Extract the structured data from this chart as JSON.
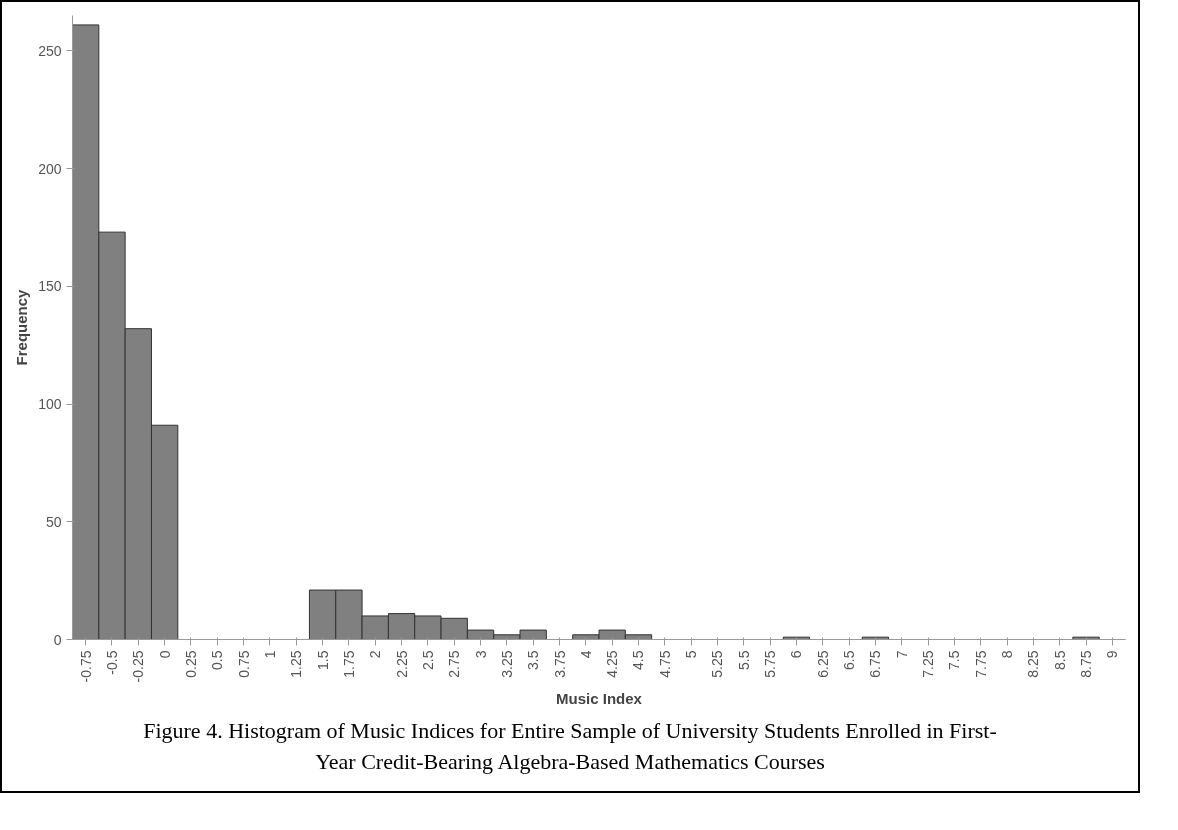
{
  "chart_data": {
    "type": "bar",
    "xlabel": "Music Index",
    "ylabel": "Frequency",
    "categories": [
      "-0.75",
      "-0.5",
      "-0.25",
      "0",
      "0.25",
      "0.5",
      "0.75",
      "1",
      "1.25",
      "1.5",
      "1.75",
      "2",
      "2.25",
      "2.5",
      "2.75",
      "3",
      "3.25",
      "3.5",
      "3.75",
      "4",
      "4.25",
      "4.5",
      "4.75",
      "5",
      "5.25",
      "5.5",
      "5.75",
      "6",
      "6.25",
      "6.5",
      "6.75",
      "7",
      "7.25",
      "7.5",
      "7.75",
      "8",
      "8.25",
      "8.5",
      "8.75",
      "9"
    ],
    "values": [
      261,
      173,
      132,
      91,
      0,
      0,
      0,
      0,
      0,
      21,
      21,
      10,
      11,
      10,
      9,
      4,
      2,
      4,
      0,
      2,
      4,
      2,
      0,
      0,
      0,
      0,
      0,
      1,
      0,
      0,
      1,
      0,
      0,
      0,
      0,
      0,
      0,
      0,
      1,
      0
    ],
    "color": "#808080",
    "ylim": [
      0,
      265
    ],
    "yticks": [
      0,
      50,
      100,
      150,
      200,
      250
    ],
    "grid": false,
    "annotations": [
      "Figure 4. Histogram of Music Indices for Entire Sample of University Students Enrolled in First-Year Credit-Bearing Algebra-Based Mathematics Courses"
    ]
  }
}
